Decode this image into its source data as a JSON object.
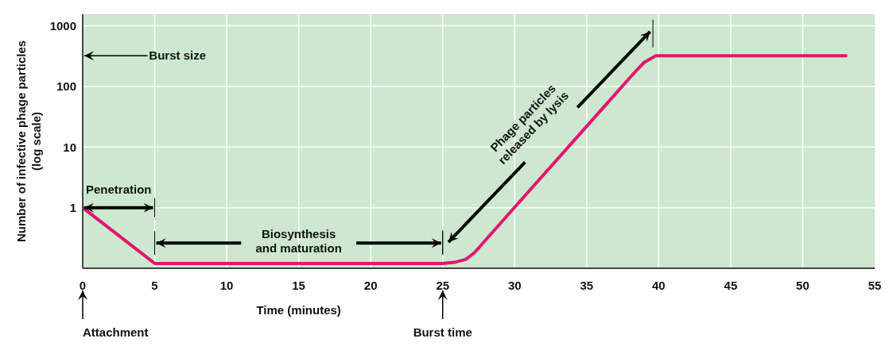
{
  "chart_data": {
    "type": "line",
    "xlabel": "Time (minutes)",
    "ylabel": "Number of infective phage particles\n(log scale)",
    "x": [
      0,
      5,
      25,
      25.8,
      26.6,
      27.2,
      30.2,
      38.4,
      39,
      39.8,
      53
    ],
    "series": [
      {
        "color": "#e0176f",
        "values": [
          1,
          0.12,
          0.12,
          0.125,
          0.14,
          0.18,
          1.15,
          178,
          250,
          320,
          320
        ]
      }
    ],
    "xlim": [
      0,
      55
    ],
    "xticks": [
      0,
      5,
      10,
      15,
      20,
      25,
      30,
      35,
      40,
      45,
      50,
      55
    ],
    "ylim": [
      0.1,
      1550
    ],
    "yticks": [
      1,
      10,
      100,
      1000
    ],
    "log": "y",
    "grid": true,
    "marker": "none",
    "line_style": "solid",
    "annotations": [
      "Burst size",
      "Penetration",
      "Biosynthesis\nand maturation",
      "Phage particles\nreleased by lysis",
      "Attachment",
      "Burst time"
    ]
  }
}
